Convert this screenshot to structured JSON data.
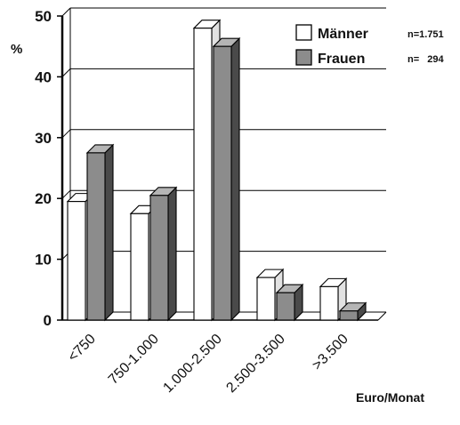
{
  "chart_data": {
    "type": "bar",
    "ylabel": "%",
    "xlabel": "Euro/Monat",
    "categories": [
      "<750",
      "750-1.000",
      "1.000-2.500",
      "2.500-3.500",
      ">3.500"
    ],
    "series": [
      {
        "name": "Männer",
        "values": [
          19.5,
          17.5,
          48,
          7,
          5.5
        ],
        "n_label": "n=1.751"
      },
      {
        "name": "Frauen",
        "values": [
          27.5,
          20.5,
          45,
          4.5,
          1.5
        ],
        "n_label": "n=   294"
      }
    ],
    "ylim": [
      0,
      50
    ],
    "yticks": [
      0,
      10,
      20,
      30,
      40,
      50
    ],
    "grid": true,
    "legend": "top-right",
    "colors": {
      "Männer": "#ffffff",
      "Frauen": "#8c8c8c"
    }
  }
}
